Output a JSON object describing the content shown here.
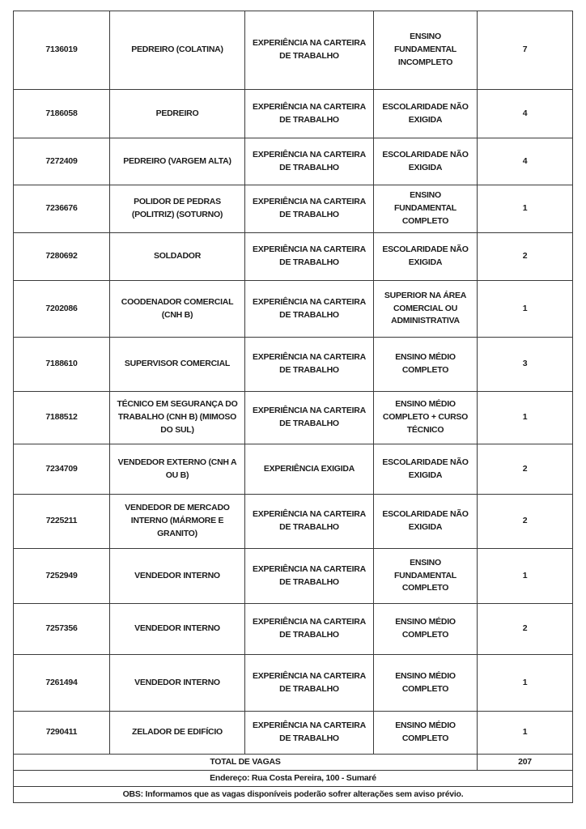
{
  "colors": {
    "background": "#ffffff",
    "border": "#3a3a3a",
    "text": "#1c1c1c"
  },
  "table": {
    "rows": [
      {
        "id": "7136019",
        "job": "PEDREIRO (COLATINA)",
        "experience": "EXPERIÊNCIA NA CARTEIRA DE TRABALHO",
        "education": "ENSINO FUNDAMENTAL INCOMPLETO",
        "vacancies": "7"
      },
      {
        "id": "7186058",
        "job": "PEDREIRO",
        "experience": "EXPERIÊNCIA NA CARTEIRA DE TRABALHO",
        "education": "ESCOLARIDADE NÃO EXIGIDA",
        "vacancies": "4"
      },
      {
        "id": "7272409",
        "job": "PEDREIRO (VARGEM ALTA)",
        "experience": "EXPERIÊNCIA NA CARTEIRA DE TRABALHO",
        "education": "ESCOLARIDADE NÃO EXIGIDA",
        "vacancies": "4"
      },
      {
        "id": "7236676",
        "job": "POLIDOR DE PEDRAS (POLITRIZ) (SOTURNO)",
        "experience": "EXPERIÊNCIA NA CARTEIRA DE TRABALHO",
        "education": "ENSINO FUNDAMENTAL COMPLETO",
        "vacancies": "1"
      },
      {
        "id": "7280692",
        "job": "SOLDADOR",
        "experience": "EXPERIÊNCIA NA CARTEIRA DE TRABALHO",
        "education": "ESCOLARIDADE NÃO EXIGIDA",
        "vacancies": "2"
      },
      {
        "id": "7202086",
        "job": "COODENADOR COMERCIAL (CNH B)",
        "experience": "EXPERIÊNCIA NA CARTEIRA DE TRABALHO",
        "education": "SUPERIOR NA ÁREA COMERCIAL OU ADMINISTRATIVA",
        "vacancies": "1"
      },
      {
        "id": "7188610",
        "job": "SUPERVISOR COMERCIAL",
        "experience": "EXPERIÊNCIA NA CARTEIRA DE TRABALHO",
        "education": "ENSINO MÉDIO COMPLETO",
        "vacancies": "3"
      },
      {
        "id": "7188512",
        "job": "TÉCNICO EM SEGURANÇA DO TRABALHO (CNH B) (MIMOSO DO SUL)",
        "experience": "EXPERIÊNCIA NA CARTEIRA DE TRABALHO",
        "education": "ENSINO MÉDIO COMPLETO + CURSO TÉCNICO",
        "vacancies": "1"
      },
      {
        "id": "7234709",
        "job": "VENDEDOR EXTERNO (CNH A OU B)",
        "experience": "EXPERIÊNCIA EXIGIDA",
        "education": "ESCOLARIDADE NÃO EXIGIDA",
        "vacancies": "2"
      },
      {
        "id": "7225211",
        "job": "VENDEDOR DE MERCADO INTERNO (MÁRMORE E GRANITO)",
        "experience": "EXPERIÊNCIA NA CARTEIRA DE TRABALHO",
        "education": "ESCOLARIDADE NÃO EXIGIDA",
        "vacancies": "2"
      },
      {
        "id": "7252949",
        "job": "VENDEDOR INTERNO",
        "experience": "EXPERIÊNCIA NA CARTEIRA DE TRABALHO",
        "education": "ENSINO FUNDAMENTAL COMPLETO",
        "vacancies": "1"
      },
      {
        "id": "7257356",
        "job": "VENDEDOR INTERNO",
        "experience": "EXPERIÊNCIA NA CARTEIRA DE TRABALHO",
        "education": "ENSINO MÉDIO COMPLETO",
        "vacancies": "2"
      },
      {
        "id": "7261494",
        "job": "VENDEDOR INTERNO",
        "experience": "EXPERIÊNCIA NA CARTEIRA DE TRABALHO",
        "education": "ENSINO MÉDIO COMPLETO",
        "vacancies": "1"
      },
      {
        "id": "7290411",
        "job": "ZELADOR DE EDIFÍCIO",
        "experience": "EXPERIÊNCIA NA CARTEIRA DE TRABALHO",
        "education": "ENSINO MÉDIO COMPLETO",
        "vacancies": "1"
      }
    ]
  },
  "footer": {
    "total_label": "TOTAL DE VAGAS",
    "total_value": "207",
    "address": "Endereço: Rua Costa Pereira, 100 - Sumaré",
    "obs": "OBS: Informamos que as vagas disponíveis poderão sofrer alterações sem aviso prévio."
  }
}
